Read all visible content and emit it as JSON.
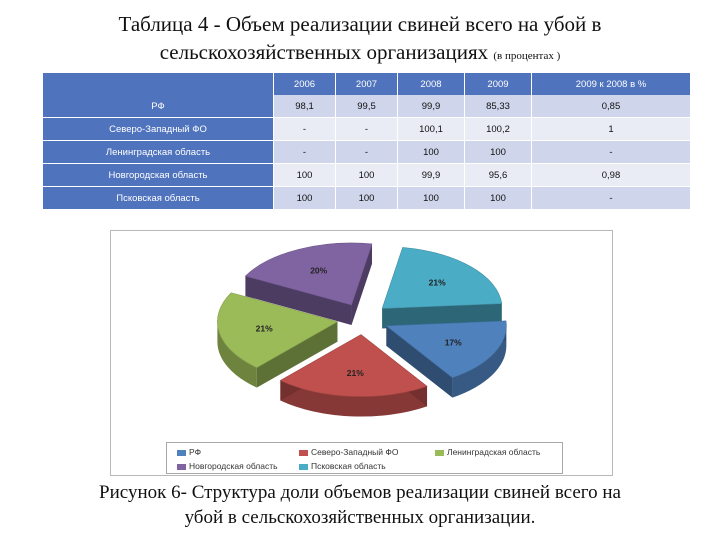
{
  "title": {
    "line1": "Таблица 4 - Объем реализации свиней всего на убой в",
    "line2": "сельскохозяйственных организациях",
    "note": "(в процентах )"
  },
  "table": {
    "headers": [
      "",
      "2006",
      "2007",
      "2008",
      "2009",
      "2009 к 2008 в %"
    ],
    "rows": [
      {
        "label": "РФ",
        "cells": [
          "98,1",
          "99,5",
          "99,9",
          "85,33",
          "0,85"
        ]
      },
      {
        "label": "Северо-Западный ФО",
        "cells": [
          "-",
          "-",
          "100,1",
          "100,2",
          "1"
        ]
      },
      {
        "label": "Ленинградская область",
        "cells": [
          "-",
          "-",
          "100",
          "100",
          "-"
        ]
      },
      {
        "label": "Новгородская область",
        "cells": [
          "100",
          "100",
          "99,9",
          "95,6",
          "0,98"
        ]
      },
      {
        "label": "Псковская область",
        "cells": [
          "100",
          "100",
          "100",
          "100",
          "-"
        ]
      }
    ]
  },
  "chart_data": {
    "type": "pie",
    "title": "",
    "slices": [
      {
        "name": "РФ",
        "value": 17,
        "label": "17%",
        "color": "#4f81bd"
      },
      {
        "name": "Северо-Западный ФО",
        "value": 21,
        "label": "21%",
        "color": "#c0504d"
      },
      {
        "name": "Ленинградская область",
        "value": 21,
        "label": "21%",
        "color": "#9bbb59"
      },
      {
        "name": "Новгородская область",
        "value": 20,
        "label": "20%",
        "color": "#8064a2"
      },
      {
        "name": "Псковская область",
        "value": 21,
        "label": "21%",
        "color": "#4bacc6"
      }
    ],
    "style": "3d-exploded",
    "legend_position": "bottom"
  },
  "caption": {
    "line1": "Рисунок 6- Структура доли объемов реализации свиней всего на",
    "line2": "убой в сельскохозяйственных организации."
  }
}
